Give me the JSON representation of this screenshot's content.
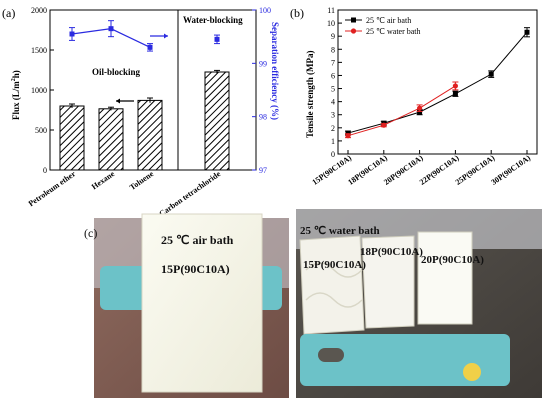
{
  "panels": {
    "a": {
      "label": "(a)"
    },
    "b": {
      "label": "(b)"
    },
    "c": {
      "label": "(c)"
    }
  },
  "chart_data": [
    {
      "panel": "(a)",
      "type": "bar",
      "categories": [
        "Petroleum ether",
        "Hexane",
        "Toluene",
        "Carbon tetrachloride"
      ],
      "ylabel": "Flux (L/m²h)",
      "ylabel_base": "Flux (L/m",
      "ylabel_sup": "2",
      "ylabel_tail": "h)",
      "ylim": [
        0,
        2000
      ],
      "yticks": [
        "0",
        "500",
        "1000",
        "1500",
        "2000"
      ],
      "y2label": "Separation efficiency (%)",
      "y2lim": [
        97,
        100
      ],
      "y2ticks": [
        "97",
        "98",
        "99",
        "100"
      ],
      "series": [
        {
          "values": [
            800,
            765,
            870,
            1225
          ],
          "errors": [
            25,
            20,
            30,
            20
          ],
          "style": "hatched-bar",
          "axis": "left"
        },
        {
          "values": [
            99.55,
            99.65,
            99.3,
            99.45
          ],
          "errors": [
            0.12,
            0.15,
            0.07,
            0.08
          ],
          "style": "blue-line-markers",
          "axis": "right",
          "color": "#2a2ae0"
        }
      ],
      "annotations": [
        "Oil-blocking",
        "Water-blocking"
      ],
      "divider_after_category": 2
    },
    {
      "panel": "(b)",
      "type": "line",
      "categories": [
        "15P(90C10A)",
        "18P(90C10A)",
        "20P(90C10A)",
        "22P(90C10A)",
        "25P(90C10A)",
        "30P(90C10A)"
      ],
      "ylabel": "Tensile strength (MPa)",
      "ylim": [
        0,
        11
      ],
      "yticks": [
        "0",
        "1",
        "2",
        "3",
        "4",
        "5",
        "6",
        "7",
        "8",
        "9",
        "10",
        "11"
      ],
      "legend_placement": "top-left",
      "series": [
        {
          "name": "25 ℃ air bath",
          "color": "#000000",
          "marker": "square",
          "values": [
            1.6,
            2.35,
            3.2,
            4.6,
            6.1,
            9.3
          ],
          "errors": [
            0.15,
            0.15,
            0.2,
            0.2,
            0.25,
            0.35
          ]
        },
        {
          "name": "25 ℃ water bath",
          "color": "#e02020",
          "marker": "circle",
          "values": [
            1.4,
            2.2,
            3.5,
            5.2,
            null,
            null
          ],
          "errors": [
            0.15,
            0.12,
            0.25,
            0.3,
            null,
            null
          ]
        }
      ]
    }
  ],
  "photos": {
    "left": {
      "line1": "25 ℃ air bath",
      "line2": "15P(90C10A)"
    },
    "right": {
      "title": "25 ℃ water bath",
      "sample1": "15P(90C10A)",
      "sample2": "18P(90C10A)",
      "sample3": "20P(90C10A)"
    }
  },
  "colors": {
    "accent_blue": "#2a2ae0",
    "water_red": "#e02020",
    "ruler_blue": "#6cc2c8"
  }
}
